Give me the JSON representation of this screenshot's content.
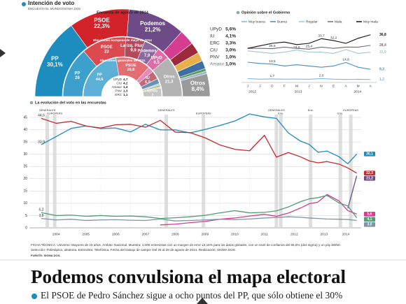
{
  "header": {
    "title": "Intención de voto",
    "source": "ENCUESTA EL MUNDO/SIGMA DOS"
  },
  "chart_data": [
    {
      "type": "semi-donut",
      "rings": [
        {
          "title": "Encuesta de agosto de 2014",
          "labels": [
            "PP",
            "PSOE",
            "Podemos",
            "UPyD",
            "IU",
            "ERC",
            "CiU",
            "PNV",
            "Amaiur",
            "Otros"
          ],
          "values": [
            30.1,
            22.3,
            21.2,
            5.6,
            4.1,
            3.3,
            3.0,
            1.0,
            1.0,
            8.4
          ],
          "value_labels": [
            "30,1%",
            "22,3%",
            "21,2%",
            "5,6%",
            "4,1%",
            "3,3%",
            "3,0%",
            "1,0%",
            "1,0%",
            "8,4%"
          ],
          "colors": [
            "#1d8cbf",
            "#d2232a",
            "#6e4a86",
            "#d63c8f",
            "#9c2a3a",
            "#e8b04a",
            "#3d6fa3",
            "#5a9a55",
            "#9fb7c9",
            "#9a9a9a"
          ]
        },
        {
          "title": "Elecciones europeas de mayo de 2014",
          "labels": [
            "PP",
            "PSOE",
            "La Izq. Plural",
            "Podemos",
            "UPyD",
            "Otros"
          ],
          "values": [
            26,
            23,
            9.9,
            7.9,
            6.5,
            21.3
          ],
          "value_labels": [
            "26",
            "23",
            "9,9",
            "7,9",
            "6,5",
            "21,3"
          ],
          "colors": [
            "#3d9fcb",
            "#dc4a4f",
            "#b5485a",
            "#8a6a9e",
            "#df6aa6",
            "#b3b3b3"
          ]
        },
        {
          "title": "Elecciones generales de 2011",
          "labels": [
            "PP",
            "PSOE",
            "UPyD",
            "IU",
            "CiU",
            "Amaiur",
            "PNV",
            "ERC",
            "Otros"
          ],
          "values": [
            44.6,
            28.8,
            4.7,
            6.9,
            4.2,
            1.4,
            1.3,
            1.1,
            7
          ],
          "value_labels": [
            "44,6",
            "28,8",
            "4,7",
            "6,9",
            "4,2",
            "1,4",
            "1,3",
            "1,1",
            "7"
          ],
          "colors": [
            "#5cb0d6",
            "#e46d71",
            "#e58bbb",
            "#c06a78",
            "#6a8fb8",
            "#b8cad8",
            "#7fb27b",
            "#efc57a",
            "#c4c4c4"
          ]
        }
      ]
    },
    {
      "type": "line",
      "title": "Opinión sobre el Gobierno",
      "categories": [
        "J",
        "J",
        "D",
        "F",
        "M",
        "J",
        "N",
        "E",
        "A",
        "M",
        "A"
      ],
      "x_groups": [
        "2012",
        "2013",
        "2014"
      ],
      "ylim": [
        0,
        40
      ],
      "series": [
        {
          "name": "Muy buena",
          "color": "#7fb6d9",
          "values": [
            2.0,
            1.5,
            1.7,
            1.5,
            1.6,
            1.4,
            2.0,
            1.5,
            1.3,
            1.4,
            1.2
          ],
          "value_labels": [
            null,
            null,
            "1,7",
            null,
            null,
            null,
            "2,0",
            null,
            null,
            null,
            "1,2"
          ]
        },
        {
          "name": "Buena",
          "color": "#3f8fc4",
          "values": [
            15,
            14,
            13.5,
            12,
            13,
            12,
            11,
            12,
            14.8,
            11,
            9.3
          ],
          "value_labels": [
            null,
            null,
            "13,5",
            null,
            null,
            null,
            null,
            null,
            "14,8",
            null,
            "9,3"
          ]
        },
        {
          "name": "Regular",
          "color": "#9ec7d8",
          "values": [
            24,
            23,
            22,
            23,
            24.6,
            23,
            23,
            22,
            25,
            22,
            22.9
          ],
          "value_labels": [
            null,
            null,
            null,
            null,
            "24,6",
            null,
            null,
            null,
            null,
            null,
            "22,9"
          ]
        },
        {
          "name": "Mala",
          "color": "#6d6d6d",
          "values": [
            26,
            26,
            25.8,
            27,
            26,
            25.4,
            27,
            26,
            27,
            27,
            28.4
          ],
          "value_labels": [
            null,
            null,
            "25,8",
            null,
            null,
            "25,4",
            null,
            null,
            null,
            null,
            "28,4"
          ]
        },
        {
          "name": "Muy mala",
          "color": "#111111",
          "values": [
            26,
            28,
            30,
            31,
            29,
            30,
            33.7,
            32.2,
            30,
            34,
            36.8
          ],
          "value_labels": [
            null,
            null,
            null,
            null,
            null,
            null,
            "33,7",
            "32,2",
            null,
            null,
            "36,8"
          ]
        }
      ]
    },
    {
      "type": "line",
      "title": "La evolución del voto en las encuestas",
      "x": [
        2004.0,
        2004.5,
        2005.0,
        2005.5,
        2006.0,
        2006.5,
        2007.0,
        2007.5,
        2008.0,
        2008.5,
        2009.0,
        2009.5,
        2010.0,
        2010.5,
        2011.0,
        2011.5,
        2011.9,
        2012.3,
        2012.7,
        2013.0,
        2013.3,
        2013.6,
        2014.0,
        2014.3,
        2014.6
      ],
      "xlim": [
        2003.6,
        2014.75
      ],
      "xticks": [
        2004,
        2005,
        2006,
        2007,
        2008,
        2009,
        2010,
        2011,
        2012,
        2013,
        2014
      ],
      "ylim": [
        0,
        45
      ],
      "yticks": [
        0,
        5,
        10,
        15,
        20,
        25,
        30,
        35,
        40,
        45
      ],
      "grid": true,
      "events": [
        {
          "label": "GENERALES",
          "x": 2004.2
        },
        {
          "label": "EUROPEAS",
          "x": 2004.45
        },
        {
          "label": "GENERALES",
          "x": 2008.2
        },
        {
          "label": "EUROPEAS",
          "x": 2009.45
        },
        {
          "label": "GENERALES",
          "x": 2011.9
        },
        {
          "label": "Ene.",
          "x": 2012.05
        },
        {
          "label": "Ene.",
          "x": 2013.05
        },
        {
          "label": "Ene.",
          "x": 2014.05
        },
        {
          "label": "EUROPEAS",
          "x": 2014.4
        }
      ],
      "series": [
        {
          "name": "PP",
          "color": "#1d8cbf",
          "values": [
            33.9,
            37.2,
            40.5,
            41.5,
            40.5,
            40.7,
            39.1,
            42.2,
            39.9,
            39.9,
            38.7,
            40.1,
            41.7,
            43.5,
            46.4,
            45.2,
            44.6,
            38.7,
            35.4,
            34.0,
            30.8,
            31.3,
            29.0,
            26.1,
            30.1
          ],
          "value_labels": [
            "33,9",
            null,
            null,
            null,
            null,
            null,
            null,
            null,
            null,
            null,
            null,
            null,
            null,
            null,
            null,
            null,
            null,
            null,
            null,
            null,
            null,
            null,
            null,
            null,
            "30,1"
          ]
        },
        {
          "name": "PSOE",
          "color": "#c8282e",
          "values": [
            44.6,
            42.6,
            43.4,
            41.5,
            40.7,
            42.0,
            42.2,
            41.0,
            43.8,
            39.0,
            38.8,
            36.7,
            33.8,
            32.0,
            31.4,
            37.7,
            28.8,
            30.7,
            29.0,
            27.3,
            26.5,
            27.0,
            26.0,
            24.4,
            22.3
          ],
          "value_labels": [
            "44,6",
            null,
            null,
            null,
            null,
            null,
            null,
            null,
            null,
            null,
            null,
            null,
            null,
            null,
            null,
            null,
            null,
            null,
            null,
            null,
            null,
            null,
            null,
            null,
            "22,3"
          ]
        },
        {
          "name": "Podemos",
          "color": "#6e4a86",
          "values": [
            null,
            null,
            null,
            null,
            null,
            null,
            null,
            null,
            null,
            null,
            null,
            null,
            null,
            null,
            null,
            null,
            null,
            null,
            null,
            null,
            null,
            null,
            null,
            7.9,
            21.2
          ],
          "value_labels": [
            null,
            null,
            null,
            null,
            null,
            null,
            null,
            null,
            null,
            null,
            null,
            null,
            null,
            null,
            null,
            null,
            null,
            null,
            null,
            null,
            null,
            null,
            null,
            null,
            "21,2"
          ]
        },
        {
          "name": "UPyD",
          "color": "#d63c8f",
          "values": [
            null,
            null,
            null,
            null,
            null,
            null,
            null,
            null,
            1.2,
            1.5,
            2.1,
            2.6,
            3.5,
            4.0,
            4.8,
            5.5,
            4.7,
            6.0,
            8.0,
            9.8,
            10.5,
            13.6,
            11.0,
            7.0,
            5.6
          ],
          "value_labels": [
            null,
            null,
            null,
            null,
            null,
            null,
            null,
            null,
            null,
            null,
            null,
            null,
            null,
            null,
            null,
            null,
            null,
            null,
            null,
            null,
            null,
            null,
            null,
            null,
            "5,6"
          ]
        },
        {
          "name": "IU",
          "color": "#4f9e74",
          "values": [
            6.2,
            5.0,
            5.2,
            4.7,
            5.0,
            4.7,
            4.8,
            4.5,
            3.8,
            4.1,
            4.5,
            5.1,
            6.1,
            7.0,
            6.1,
            6.3,
            6.9,
            8.5,
            10.6,
            11.8,
            12.3,
            13.2,
            10.2,
            8.9,
            4.1
          ],
          "value_labels": [
            "6,2",
            null,
            null,
            null,
            null,
            null,
            null,
            null,
            null,
            null,
            null,
            null,
            null,
            null,
            null,
            null,
            null,
            null,
            null,
            null,
            null,
            null,
            null,
            null,
            "4,1"
          ]
        },
        {
          "name": "CiU",
          "color": "#7d93a6",
          "values": [
            3.8,
            3.2,
            3.5,
            3.0,
            3.2,
            3.3,
            3.1,
            3.0,
            3.6,
            2.8,
            3.0,
            3.2,
            3.5,
            3.3,
            3.6,
            4.0,
            4.2,
            4.5,
            4.3,
            4.0,
            3.8,
            3.6,
            3.5,
            3.4,
            3.0
          ],
          "value_labels": [
            "3,8",
            null,
            null,
            null,
            null,
            null,
            null,
            null,
            null,
            null,
            null,
            null,
            null,
            null,
            null,
            null,
            null,
            null,
            null,
            null,
            null,
            null,
            null,
            null,
            "3,0"
          ]
        }
      ]
    }
  ],
  "ficha": [
    "FICHA TÉCNICA. Universo: Mayores de 18 años. Ámbito: Nacional. Muestra: 1.000 entrevistas con un margen de error ±3,16% para los datos globales, con un nivel de confianza del 95,5% (dos sigma) y un p/q=50/50.",
    "Selección: Polietápica, aleatoria. Entrevista: Telefónica. Fecha del trabajo de campo: Del 26 al 28 de agosto de 2014. Realización: SIGMA DOS."
  ],
  "fuente": "FUENTE: SIGMA DOS.",
  "headline": "Podemos convulsiona el mapa electoral",
  "subtitle": "El PSOE de Pedro Sánchez sigue a ocho puntos del PP, que sólo obtiene el 30%"
}
